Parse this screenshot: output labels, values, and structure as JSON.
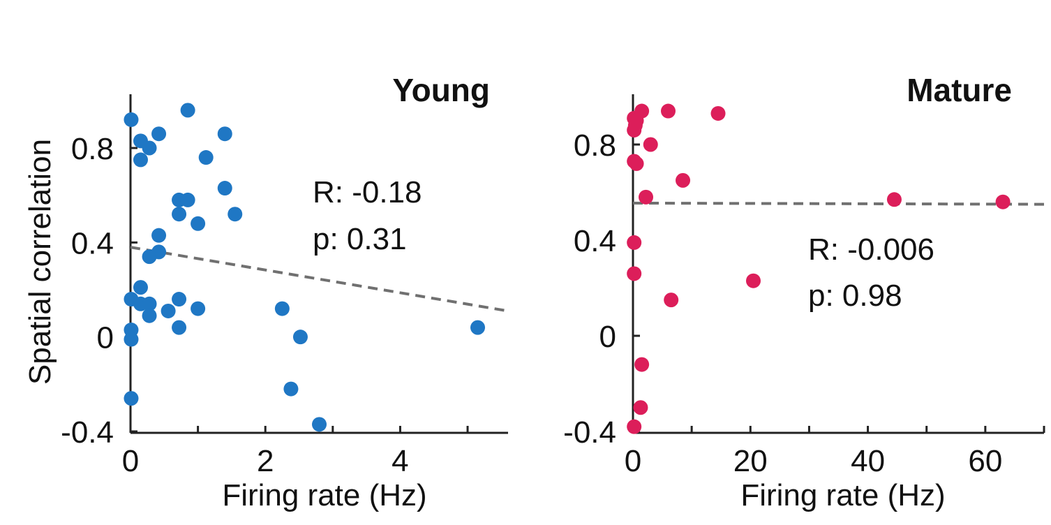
{
  "chart_data": [
    {
      "type": "scatter",
      "title": "Young",
      "xlabel": "Firing rate (Hz)",
      "ylabel": "Spatial correlation",
      "xlim": [
        0,
        5.6
      ],
      "ylim": [
        -0.4,
        1.03
      ],
      "xticks": [
        0,
        2,
        4
      ],
      "xtick_labels": [
        "0",
        "2",
        "4"
      ],
      "yticks": [
        -0.4,
        0,
        0.4,
        0.8
      ],
      "ytick_labels": [
        "-0.4",
        "0",
        "0.4",
        "0.8"
      ],
      "color": "#1f77c4",
      "stat_r": "R: -0.18",
      "stat_p": "p: 0.31",
      "fit_line": {
        "x": [
          0,
          5.6
        ],
        "y": [
          0.38,
          0.11
        ]
      },
      "points": [
        {
          "x": 0.01,
          "y": 0.92
        },
        {
          "x": 0.15,
          "y": 0.83
        },
        {
          "x": 0.15,
          "y": 0.75
        },
        {
          "x": 0.28,
          "y": 0.8
        },
        {
          "x": 0.42,
          "y": 0.86
        },
        {
          "x": 0.85,
          "y": 0.96
        },
        {
          "x": 1.4,
          "y": 0.86
        },
        {
          "x": 1.12,
          "y": 0.76
        },
        {
          "x": 1.4,
          "y": 0.63
        },
        {
          "x": 0.72,
          "y": 0.58
        },
        {
          "x": 0.85,
          "y": 0.58
        },
        {
          "x": 0.72,
          "y": 0.52
        },
        {
          "x": 1.0,
          "y": 0.48
        },
        {
          "x": 1.55,
          "y": 0.52
        },
        {
          "x": 0.42,
          "y": 0.43
        },
        {
          "x": 0.42,
          "y": 0.36
        },
        {
          "x": 0.28,
          "y": 0.34
        },
        {
          "x": 0.15,
          "y": 0.21
        },
        {
          "x": 0.01,
          "y": 0.16
        },
        {
          "x": 0.15,
          "y": 0.14
        },
        {
          "x": 0.28,
          "y": 0.14
        },
        {
          "x": 0.28,
          "y": 0.09
        },
        {
          "x": 0.56,
          "y": 0.11
        },
        {
          "x": 0.72,
          "y": 0.16
        },
        {
          "x": 1.0,
          "y": 0.12
        },
        {
          "x": 0.72,
          "y": 0.04
        },
        {
          "x": 0.01,
          "y": 0.03
        },
        {
          "x": 0.01,
          "y": -0.01
        },
        {
          "x": 2.25,
          "y": 0.12
        },
        {
          "x": 2.52,
          "y": 0.0
        },
        {
          "x": 2.38,
          "y": -0.22
        },
        {
          "x": 2.8,
          "y": -0.37
        },
        {
          "x": 0.01,
          "y": -0.26
        },
        {
          "x": 5.15,
          "y": 0.04
        }
      ]
    },
    {
      "type": "scatter",
      "title": "Mature",
      "xlabel": "Firing rate (Hz)",
      "ylabel": "",
      "xlim": [
        0,
        70
      ],
      "ylim": [
        -0.4,
        1.03
      ],
      "xticks": [
        0,
        20,
        40,
        60
      ],
      "xtick_labels": [
        "0",
        "20",
        "40",
        "60"
      ],
      "yticks": [
        -0.4,
        0,
        0.4,
        0.8
      ],
      "ytick_labels": [
        "-0.4",
        "0",
        "0.4",
        "0.8"
      ],
      "color": "#dc1e5a",
      "stat_r": "R: -0.006",
      "stat_p": "p: 0.98",
      "fit_line": {
        "x": [
          0,
          70
        ],
        "y": [
          0.555,
          0.55
        ]
      },
      "points": [
        {
          "x": 0.2,
          "y": 0.91
        },
        {
          "x": 0.4,
          "y": 0.88
        },
        {
          "x": 0.2,
          "y": 0.86
        },
        {
          "x": 0.6,
          "y": 0.9
        },
        {
          "x": 1.5,
          "y": 0.94
        },
        {
          "x": 6.0,
          "y": 0.94
        },
        {
          "x": 14.5,
          "y": 0.93
        },
        {
          "x": 3.0,
          "y": 0.8
        },
        {
          "x": 0.2,
          "y": 0.73
        },
        {
          "x": 0.6,
          "y": 0.72
        },
        {
          "x": 8.5,
          "y": 0.65
        },
        {
          "x": 2.2,
          "y": 0.58
        },
        {
          "x": 0.2,
          "y": 0.39
        },
        {
          "x": 0.2,
          "y": 0.26
        },
        {
          "x": 20.5,
          "y": 0.23
        },
        {
          "x": 6.5,
          "y": 0.15
        },
        {
          "x": 44.5,
          "y": 0.57
        },
        {
          "x": 63.0,
          "y": 0.56
        },
        {
          "x": 1.5,
          "y": -0.12
        },
        {
          "x": 1.3,
          "y": -0.3
        },
        {
          "x": 0.2,
          "y": -0.38
        }
      ]
    }
  ]
}
